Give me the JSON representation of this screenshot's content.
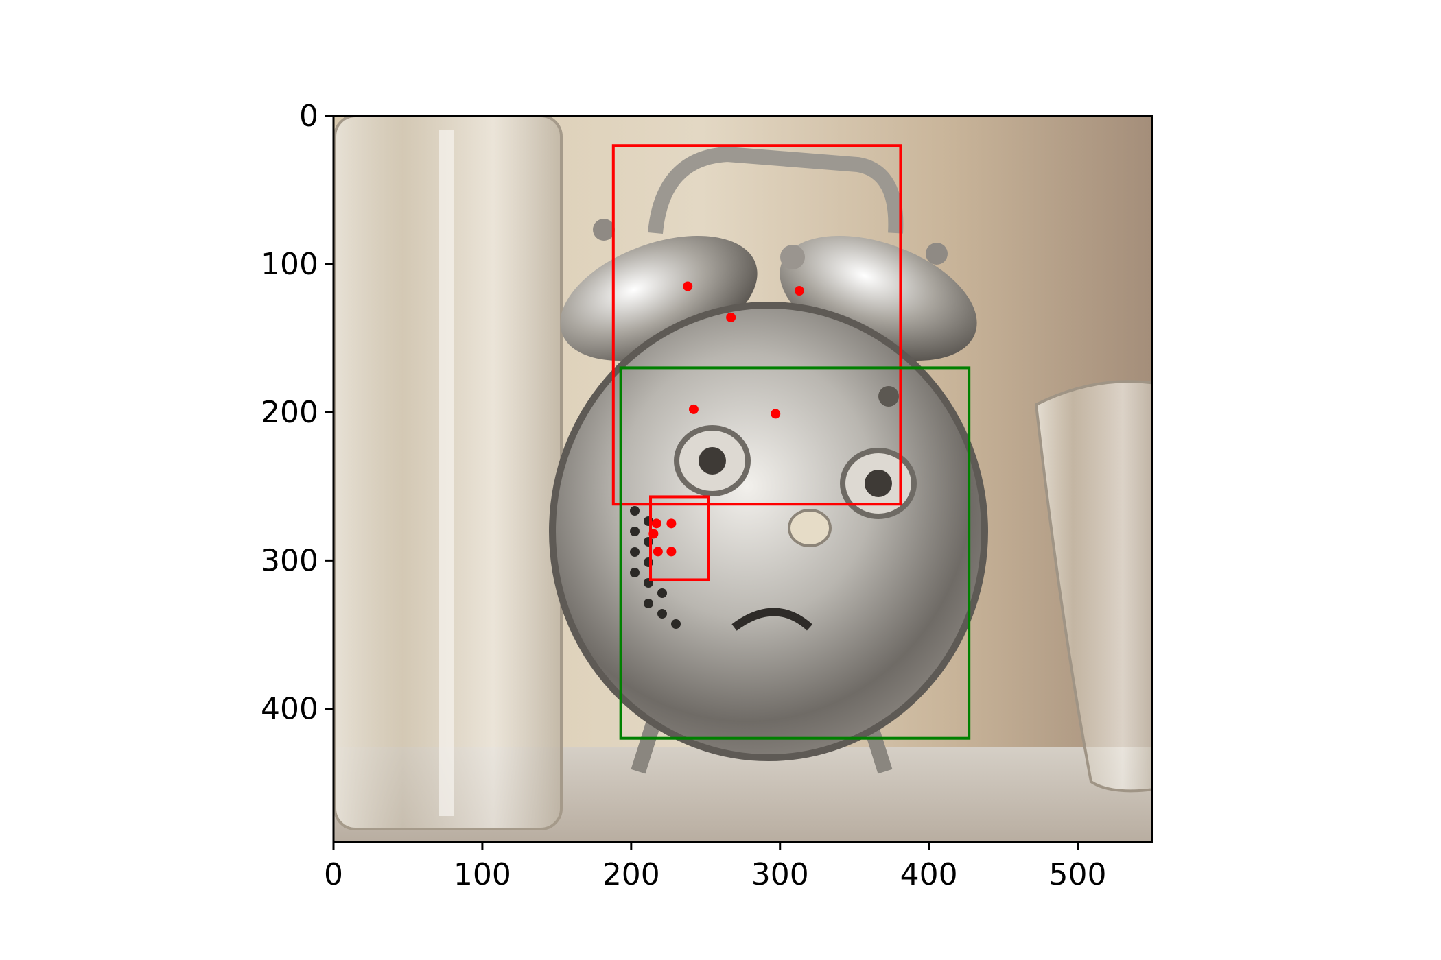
{
  "figure": {
    "x_axis": {
      "range": [
        0,
        550
      ],
      "ticks": [
        0,
        100,
        200,
        300,
        400,
        500
      ],
      "tick_labels": [
        "0",
        "100",
        "200",
        "300",
        "400",
        "500"
      ]
    },
    "y_axis": {
      "range": [
        490,
        0
      ],
      "inverted": true,
      "ticks": [
        0,
        100,
        200,
        300,
        400
      ],
      "tick_labels": [
        "0",
        "100",
        "200",
        "300",
        "400"
      ]
    },
    "colors": {
      "red": "#ff0000",
      "green": "#008000",
      "axis": "#000000"
    },
    "image": {
      "description": "chrome alarm clock with a cartoon face, between two drinking glasses"
    },
    "boxes": [
      {
        "color": "red",
        "x0": 188,
        "y0": 20,
        "x1": 381,
        "y1": 262
      },
      {
        "color": "green",
        "x0": 193,
        "y0": 170,
        "x1": 427,
        "y1": 420
      },
      {
        "color": "red",
        "x0": 213,
        "y0": 257,
        "x1": 252,
        "y1": 313
      }
    ],
    "points": [
      {
        "x": 238,
        "y": 115
      },
      {
        "x": 313,
        "y": 118
      },
      {
        "x": 267,
        "y": 136
      },
      {
        "x": 242,
        "y": 198
      },
      {
        "x": 297,
        "y": 201
      },
      {
        "x": 217,
        "y": 275
      },
      {
        "x": 227,
        "y": 275
      },
      {
        "x": 215,
        "y": 282
      },
      {
        "x": 218,
        "y": 294
      },
      {
        "x": 227,
        "y": 294
      }
    ]
  }
}
